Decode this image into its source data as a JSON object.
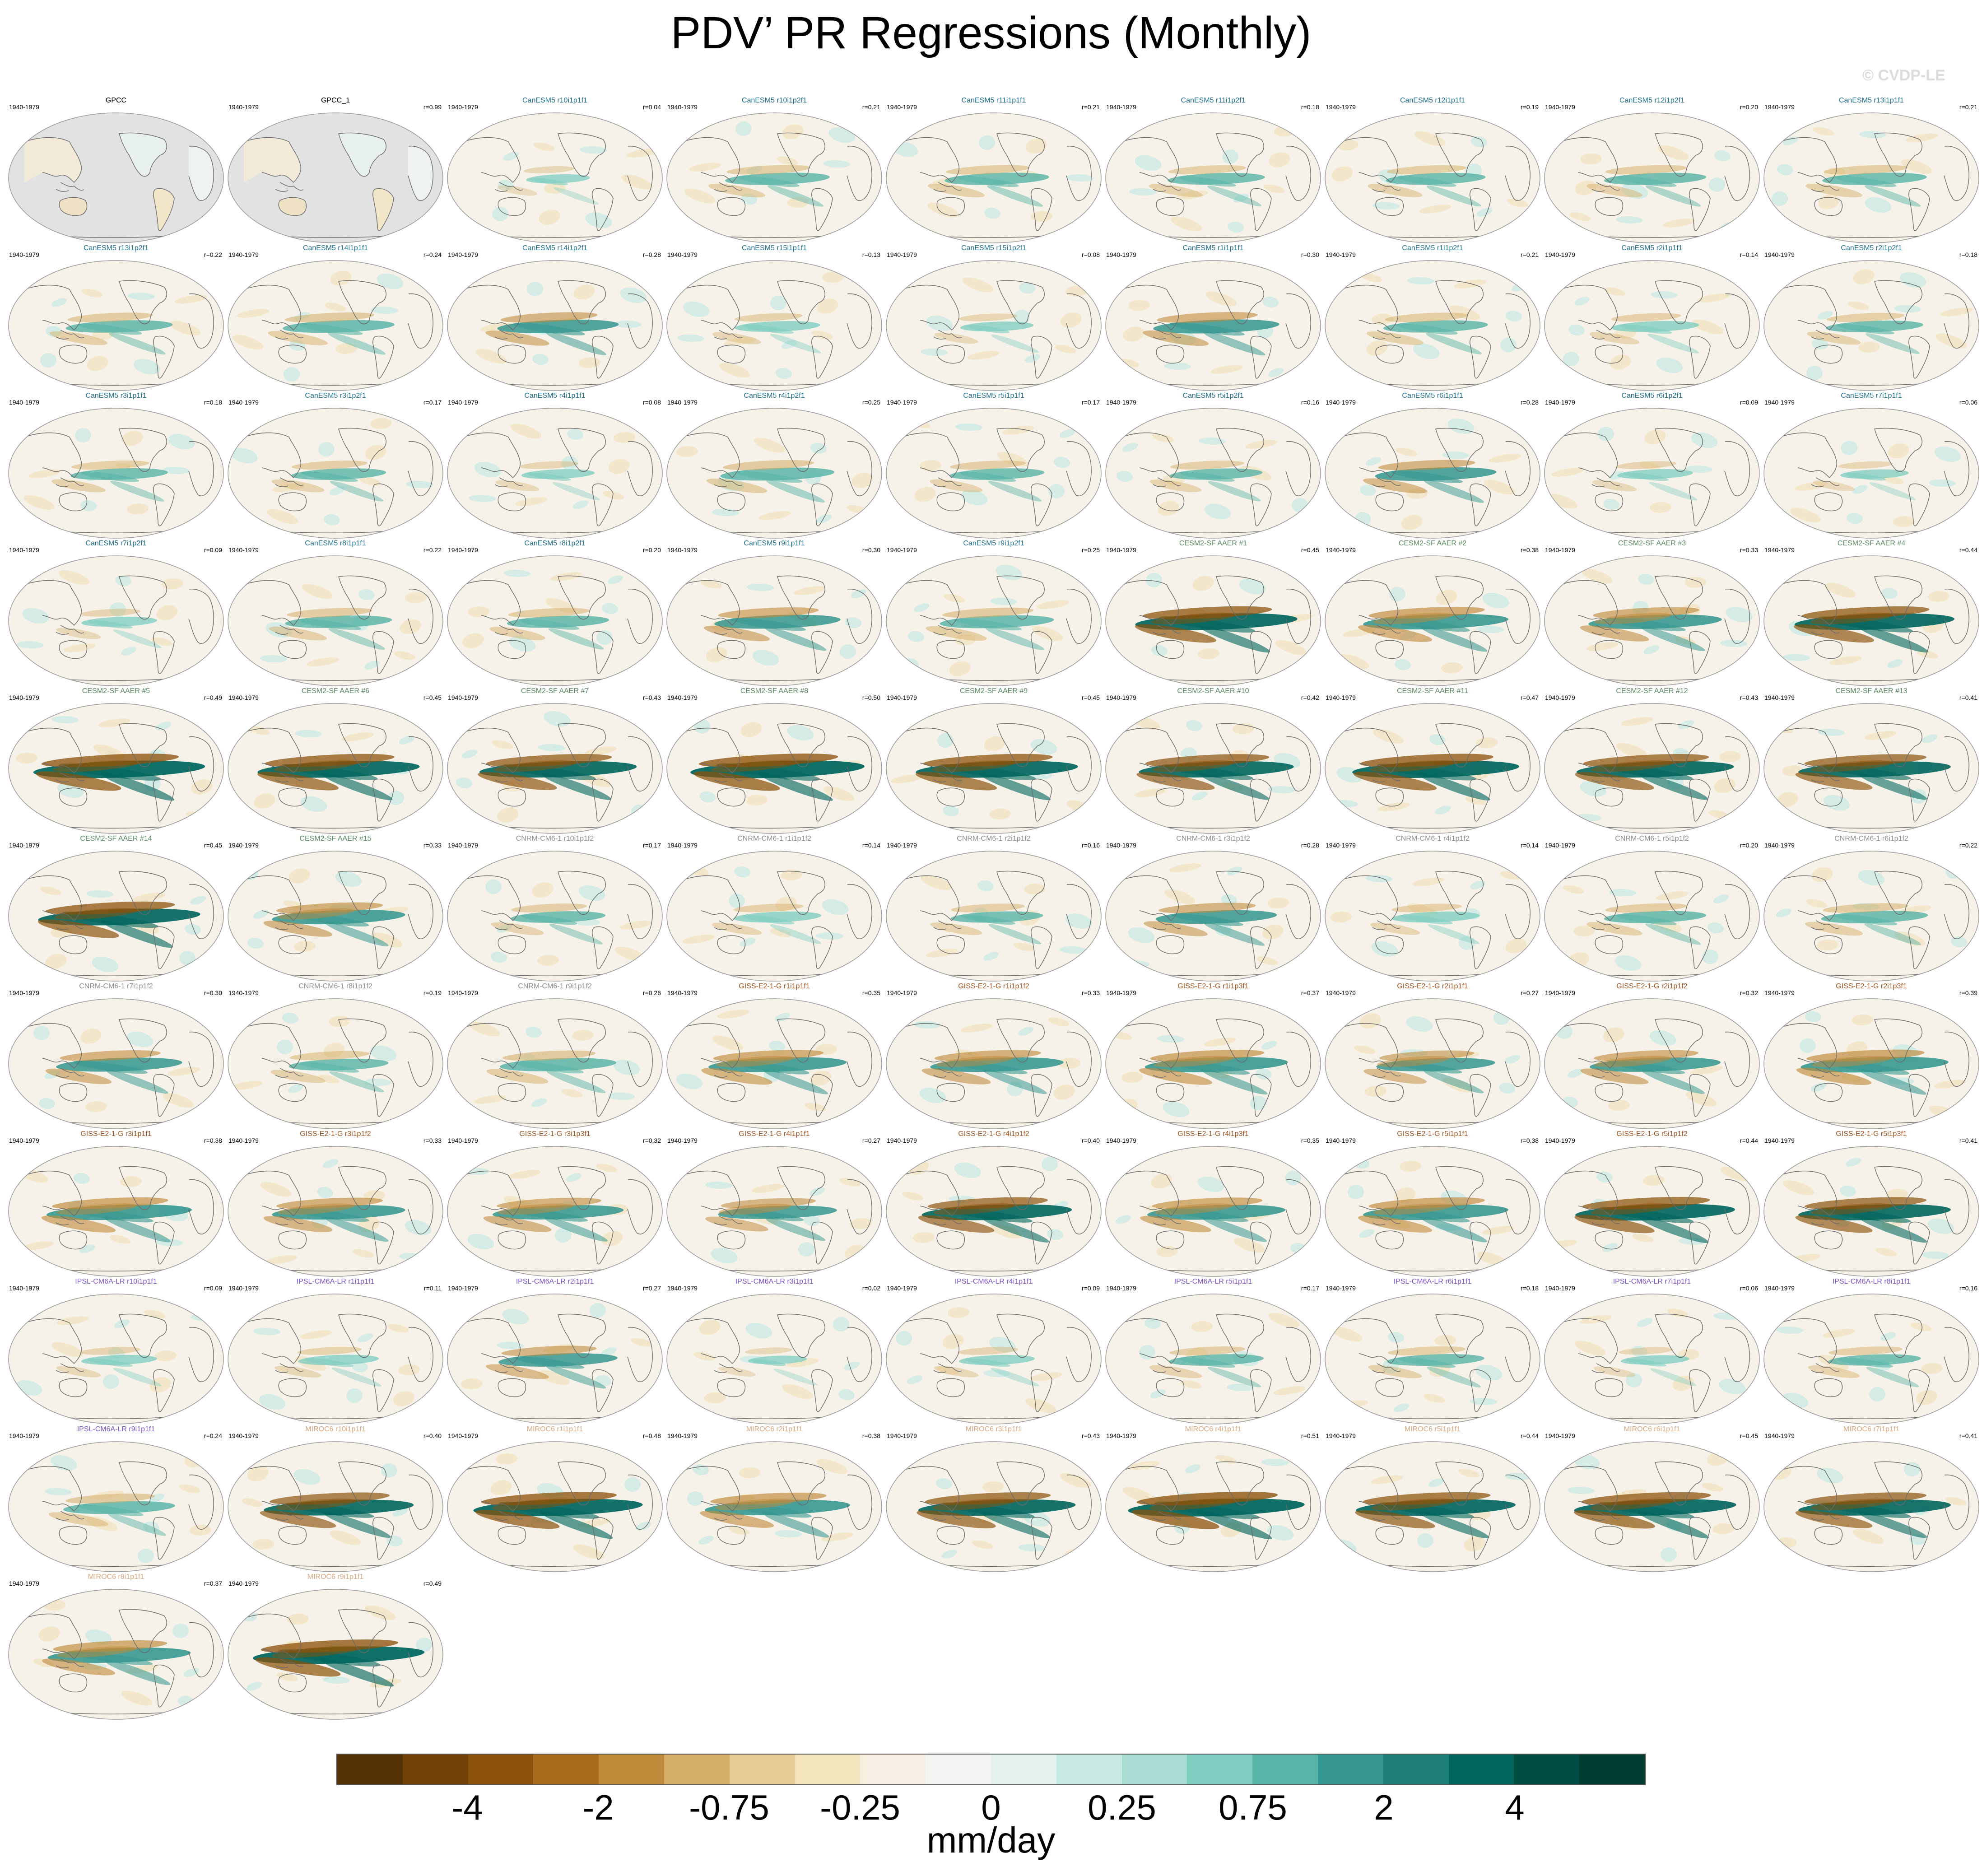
{
  "title": "PDV’ PR Regressions (Monthly)",
  "watermark": "© CVDP-LE",
  "units": "mm/day",
  "colors": {
    "CanESM5": "#1f6e8c",
    "CESM2-SF": "#5a8a62",
    "CNRM-CM6-1": "#8e8e8e",
    "GISS-E2-1-G": "#a0521d",
    "IPSL-CM6A-LR": "#7b52c4",
    "MIROC6": "#d9a77e",
    "obs": "#000000",
    "land_obs": "#e2e2e2",
    "coast": "#6a6a6a"
  },
  "colorbar": {
    "colors": [
      "#543005",
      "#734108",
      "#8c510a",
      "#a96b1e",
      "#c08a3b",
      "#d4ad66",
      "#e6cd93",
      "#f2e3bd",
      "#f6efe1",
      "#f4f5f3",
      "#e2f0ee",
      "#c6e9e3",
      "#a8ddd3",
      "#80cdc1",
      "#5ab4a7",
      "#35978f",
      "#1d7f75",
      "#01665e",
      "#004c42",
      "#003c30"
    ],
    "labels": [
      "-4",
      "-2",
      "-0.75",
      "-0.25",
      "0",
      "0.25",
      "0.75",
      "2",
      "4"
    ]
  },
  "chart_data": {
    "type": "heatmap",
    "title": "PDV’ PR Regressions (Monthly)",
    "colorbar_label": "mm/day",
    "colorbar_ticks": [
      -4,
      -2,
      -0.75,
      -0.25,
      0,
      0.25,
      0.75,
      2,
      4
    ],
    "period": "1940-1979",
    "panels": [
      {
        "name": "GPCC",
        "group": "obs",
        "period": "1940-1979",
        "corr": ""
      },
      {
        "name": "GPCC_1",
        "group": "obs",
        "period": "1940-1979",
        "corr": "r=0.99"
      },
      {
        "name": "CanESM5 r10i1p1f1",
        "group": "CanESM5",
        "period": "1940-1979",
        "corr": "r=0.04"
      },
      {
        "name": "CanESM5 r10i1p2f1",
        "group": "CanESM5",
        "period": "1940-1979",
        "corr": "r=0.21"
      },
      {
        "name": "CanESM5 r11i1p1f1",
        "group": "CanESM5",
        "period": "1940-1979",
        "corr": "r=0.21"
      },
      {
        "name": "CanESM5 r11i1p2f1",
        "group": "CanESM5",
        "period": "1940-1979",
        "corr": "r=0.18"
      },
      {
        "name": "CanESM5 r12i1p1f1",
        "group": "CanESM5",
        "period": "1940-1979",
        "corr": "r=0.19"
      },
      {
        "name": "CanESM5 r12i1p2f1",
        "group": "CanESM5",
        "period": "1940-1979",
        "corr": "r=0.20"
      },
      {
        "name": "CanESM5 r13i1p1f1",
        "group": "CanESM5",
        "period": "1940-1979",
        "corr": "r=0.21"
      },
      {
        "name": "CanESM5 r13i1p2f1",
        "group": "CanESM5",
        "period": "1940-1979",
        "corr": "r=0.22"
      },
      {
        "name": "CanESM5 r14i1p1f1",
        "group": "CanESM5",
        "period": "1940-1979",
        "corr": "r=0.24"
      },
      {
        "name": "CanESM5 r14i1p2f1",
        "group": "CanESM5",
        "period": "1940-1979",
        "corr": "r=0.28"
      },
      {
        "name": "CanESM5 r15i1p1f1",
        "group": "CanESM5",
        "period": "1940-1979",
        "corr": "r=0.13"
      },
      {
        "name": "CanESM5 r15i1p2f1",
        "group": "CanESM5",
        "period": "1940-1979",
        "corr": "r=0.08"
      },
      {
        "name": "CanESM5 r1i1p1f1",
        "group": "CanESM5",
        "period": "1940-1979",
        "corr": "r=0.30"
      },
      {
        "name": "CanESM5 r1i1p2f1",
        "group": "CanESM5",
        "period": "1940-1979",
        "corr": "r=0.21"
      },
      {
        "name": "CanESM5 r2i1p1f1",
        "group": "CanESM5",
        "period": "1940-1979",
        "corr": "r=0.14"
      },
      {
        "name": "CanESM5 r2i1p2f1",
        "group": "CanESM5",
        "period": "1940-1979",
        "corr": "r=0.18"
      },
      {
        "name": "CanESM5 r3i1p1f1",
        "group": "CanESM5",
        "period": "1940-1979",
        "corr": "r=0.18"
      },
      {
        "name": "CanESM5 r3i1p2f1",
        "group": "CanESM5",
        "period": "1940-1979",
        "corr": "r=0.17"
      },
      {
        "name": "CanESM5 r4i1p1f1",
        "group": "CanESM5",
        "period": "1940-1979",
        "corr": "r=0.08"
      },
      {
        "name": "CanESM5 r4i1p2f1",
        "group": "CanESM5",
        "period": "1940-1979",
        "corr": "r=0.25"
      },
      {
        "name": "CanESM5 r5i1p1f1",
        "group": "CanESM5",
        "period": "1940-1979",
        "corr": "r=0.17"
      },
      {
        "name": "CanESM5 r5i1p2f1",
        "group": "CanESM5",
        "period": "1940-1979",
        "corr": "r=0.16"
      },
      {
        "name": "CanESM5 r6i1p1f1",
        "group": "CanESM5",
        "period": "1940-1979",
        "corr": "r=0.28"
      },
      {
        "name": "CanESM5 r6i1p2f1",
        "group": "CanESM5",
        "period": "1940-1979",
        "corr": "r=0.09"
      },
      {
        "name": "CanESM5 r7i1p1f1",
        "group": "CanESM5",
        "period": "1940-1979",
        "corr": "r=0.06"
      },
      {
        "name": "CanESM5 r7i1p2f1",
        "group": "CanESM5",
        "period": "1940-1979",
        "corr": "r=0.09"
      },
      {
        "name": "CanESM5 r8i1p1f1",
        "group": "CanESM5",
        "period": "1940-1979",
        "corr": "r=0.22"
      },
      {
        "name": "CanESM5 r8i1p2f1",
        "group": "CanESM5",
        "period": "1940-1979",
        "corr": "r=0.20"
      },
      {
        "name": "CanESM5 r9i1p1f1",
        "group": "CanESM5",
        "period": "1940-1979",
        "corr": "r=0.30"
      },
      {
        "name": "CanESM5 r9i1p2f1",
        "group": "CanESM5",
        "period": "1940-1979",
        "corr": "r=0.25"
      },
      {
        "name": "CESM2-SF AAER #1",
        "group": "CESM2-SF",
        "period": "1940-1979",
        "corr": "r=0.45"
      },
      {
        "name": "CESM2-SF AAER #2",
        "group": "CESM2-SF",
        "period": "1940-1979",
        "corr": "r=0.38"
      },
      {
        "name": "CESM2-SF AAER #3",
        "group": "CESM2-SF",
        "period": "1940-1979",
        "corr": "r=0.33"
      },
      {
        "name": "CESM2-SF AAER #4",
        "group": "CESM2-SF",
        "period": "1940-1979",
        "corr": "r=0.44"
      },
      {
        "name": "CESM2-SF AAER #5",
        "group": "CESM2-SF",
        "period": "1940-1979",
        "corr": "r=0.49"
      },
      {
        "name": "CESM2-SF AAER #6",
        "group": "CESM2-SF",
        "period": "1940-1979",
        "corr": "r=0.45"
      },
      {
        "name": "CESM2-SF AAER #7",
        "group": "CESM2-SF",
        "period": "1940-1979",
        "corr": "r=0.43"
      },
      {
        "name": "CESM2-SF AAER #8",
        "group": "CESM2-SF",
        "period": "1940-1979",
        "corr": "r=0.50"
      },
      {
        "name": "CESM2-SF AAER #9",
        "group": "CESM2-SF",
        "period": "1940-1979",
        "corr": "r=0.45"
      },
      {
        "name": "CESM2-SF AAER #10",
        "group": "CESM2-SF",
        "period": "1940-1979",
        "corr": "r=0.42"
      },
      {
        "name": "CESM2-SF AAER #11",
        "group": "CESM2-SF",
        "period": "1940-1979",
        "corr": "r=0.47"
      },
      {
        "name": "CESM2-SF AAER #12",
        "group": "CESM2-SF",
        "period": "1940-1979",
        "corr": "r=0.43"
      },
      {
        "name": "CESM2-SF AAER #13",
        "group": "CESM2-SF",
        "period": "1940-1979",
        "corr": "r=0.41"
      },
      {
        "name": "CESM2-SF AAER #14",
        "group": "CESM2-SF",
        "period": "1940-1979",
        "corr": "r=0.45"
      },
      {
        "name": "CESM2-SF AAER #15",
        "group": "CESM2-SF",
        "period": "1940-1979",
        "corr": "r=0.33"
      },
      {
        "name": "CNRM-CM6-1 r10i1p1f2",
        "group": "CNRM-CM6-1",
        "period": "1940-1979",
        "corr": "r=0.17"
      },
      {
        "name": "CNRM-CM6-1 r1i1p1f2",
        "group": "CNRM-CM6-1",
        "period": "1940-1979",
        "corr": "r=0.14"
      },
      {
        "name": "CNRM-CM6-1 r2i1p1f2",
        "group": "CNRM-CM6-1",
        "period": "1940-1979",
        "corr": "r=0.16"
      },
      {
        "name": "CNRM-CM6-1 r3i1p1f2",
        "group": "CNRM-CM6-1",
        "period": "1940-1979",
        "corr": "r=0.28"
      },
      {
        "name": "CNRM-CM6-1 r4i1p1f2",
        "group": "CNRM-CM6-1",
        "period": "1940-1979",
        "corr": "r=0.14"
      },
      {
        "name": "CNRM-CM6-1 r5i1p1f2",
        "group": "CNRM-CM6-1",
        "period": "1940-1979",
        "corr": "r=0.20"
      },
      {
        "name": "CNRM-CM6-1 r6i1p1f2",
        "group": "CNRM-CM6-1",
        "period": "1940-1979",
        "corr": "r=0.22"
      },
      {
        "name": "CNRM-CM6-1 r7i1p1f2",
        "group": "CNRM-CM6-1",
        "period": "1940-1979",
        "corr": "r=0.30"
      },
      {
        "name": "CNRM-CM6-1 r8i1p1f2",
        "group": "CNRM-CM6-1",
        "period": "1940-1979",
        "corr": "r=0.19"
      },
      {
        "name": "CNRM-CM6-1 r9i1p1f2",
        "group": "CNRM-CM6-1",
        "period": "1940-1979",
        "corr": "r=0.26"
      },
      {
        "name": "GISS-E2-1-G r1i1p1f1",
        "group": "GISS-E2-1-G",
        "period": "1940-1979",
        "corr": "r=0.35"
      },
      {
        "name": "GISS-E2-1-G r1i1p1f2",
        "group": "GISS-E2-1-G",
        "period": "1940-1979",
        "corr": "r=0.33"
      },
      {
        "name": "GISS-E2-1-G r1i1p3f1",
        "group": "GISS-E2-1-G",
        "period": "1940-1979",
        "corr": "r=0.37"
      },
      {
        "name": "GISS-E2-1-G r2i1p1f1",
        "group": "GISS-E2-1-G",
        "period": "1940-1979",
        "corr": "r=0.27"
      },
      {
        "name": "GISS-E2-1-G r2i1p1f2",
        "group": "GISS-E2-1-G",
        "period": "1940-1979",
        "corr": "r=0.32"
      },
      {
        "name": "GISS-E2-1-G r2i1p3f1",
        "group": "GISS-E2-1-G",
        "period": "1940-1979",
        "corr": "r=0.39"
      },
      {
        "name": "GISS-E2-1-G r3i1p1f1",
        "group": "GISS-E2-1-G",
        "period": "1940-1979",
        "corr": "r=0.38"
      },
      {
        "name": "GISS-E2-1-G r3i1p1f2",
        "group": "GISS-E2-1-G",
        "period": "1940-1979",
        "corr": "r=0.33"
      },
      {
        "name": "GISS-E2-1-G r3i1p3f1",
        "group": "GISS-E2-1-G",
        "period": "1940-1979",
        "corr": "r=0.32"
      },
      {
        "name": "GISS-E2-1-G r4i1p1f1",
        "group": "GISS-E2-1-G",
        "period": "1940-1979",
        "corr": "r=0.27"
      },
      {
        "name": "GISS-E2-1-G r4i1p1f2",
        "group": "GISS-E2-1-G",
        "period": "1940-1979",
        "corr": "r=0.40"
      },
      {
        "name": "GISS-E2-1-G r4i1p3f1",
        "group": "GISS-E2-1-G",
        "period": "1940-1979",
        "corr": "r=0.35"
      },
      {
        "name": "GISS-E2-1-G r5i1p1f1",
        "group": "GISS-E2-1-G",
        "period": "1940-1979",
        "corr": "r=0.38"
      },
      {
        "name": "GISS-E2-1-G r5i1p1f2",
        "group": "GISS-E2-1-G",
        "period": "1940-1979",
        "corr": "r=0.44"
      },
      {
        "name": "GISS-E2-1-G r5i1p3f1",
        "group": "GISS-E2-1-G",
        "period": "1940-1979",
        "corr": "r=0.41"
      },
      {
        "name": "IPSL-CM6A-LR r10i1p1f1",
        "group": "IPSL-CM6A-LR",
        "period": "1940-1979",
        "corr": "r=0.09"
      },
      {
        "name": "IPSL-CM6A-LR r1i1p1f1",
        "group": "IPSL-CM6A-LR",
        "period": "1940-1979",
        "corr": "r=0.11"
      },
      {
        "name": "IPSL-CM6A-LR r2i1p1f1",
        "group": "IPSL-CM6A-LR",
        "period": "1940-1979",
        "corr": "r=0.27"
      },
      {
        "name": "IPSL-CM6A-LR r3i1p1f1",
        "group": "IPSL-CM6A-LR",
        "period": "1940-1979",
        "corr": "r=0.02"
      },
      {
        "name": "IPSL-CM6A-LR r4i1p1f1",
        "group": "IPSL-CM6A-LR",
        "period": "1940-1979",
        "corr": "r=0.09"
      },
      {
        "name": "IPSL-CM6A-LR r5i1p1f1",
        "group": "IPSL-CM6A-LR",
        "period": "1940-1979",
        "corr": "r=0.17"
      },
      {
        "name": "IPSL-CM6A-LR r6i1p1f1",
        "group": "IPSL-CM6A-LR",
        "period": "1940-1979",
        "corr": "r=0.18"
      },
      {
        "name": "IPSL-CM6A-LR r7i1p1f1",
        "group": "IPSL-CM6A-LR",
        "period": "1940-1979",
        "corr": "r=0.06"
      },
      {
        "name": "IPSL-CM6A-LR r8i1p1f1",
        "group": "IPSL-CM6A-LR",
        "period": "1940-1979",
        "corr": "r=0.16"
      },
      {
        "name": "IPSL-CM6A-LR r9i1p1f1",
        "group": "IPSL-CM6A-LR",
        "period": "1940-1979",
        "corr": "r=0.24"
      },
      {
        "name": "MIROC6 r10i1p1f1",
        "group": "MIROC6",
        "period": "1940-1979",
        "corr": "r=0.40"
      },
      {
        "name": "MIROC6 r1i1p1f1",
        "group": "MIROC6",
        "period": "1940-1979",
        "corr": "r=0.48"
      },
      {
        "name": "MIROC6 r2i1p1f1",
        "group": "MIROC6",
        "period": "1940-1979",
        "corr": "r=0.38"
      },
      {
        "name": "MIROC6 r3i1p1f1",
        "group": "MIROC6",
        "period": "1940-1979",
        "corr": "r=0.43"
      },
      {
        "name": "MIROC6 r4i1p1f1",
        "group": "MIROC6",
        "period": "1940-1979",
        "corr": "r=0.51"
      },
      {
        "name": "MIROC6 r5i1p1f1",
        "group": "MIROC6",
        "period": "1940-1979",
        "corr": "r=0.44"
      },
      {
        "name": "MIROC6 r6i1p1f1",
        "group": "MIROC6",
        "period": "1940-1979",
        "corr": "r=0.45"
      },
      {
        "name": "MIROC6 r7i1p1f1",
        "group": "MIROC6",
        "period": "1940-1979",
        "corr": "r=0.41"
      },
      {
        "name": "MIROC6 r8i1p1f1",
        "group": "MIROC6",
        "period": "1940-1979",
        "corr": "r=0.37"
      },
      {
        "name": "MIROC6 r9i1p1f1",
        "group": "MIROC6",
        "period": "1940-1979",
        "corr": "r=0.49"
      }
    ]
  }
}
